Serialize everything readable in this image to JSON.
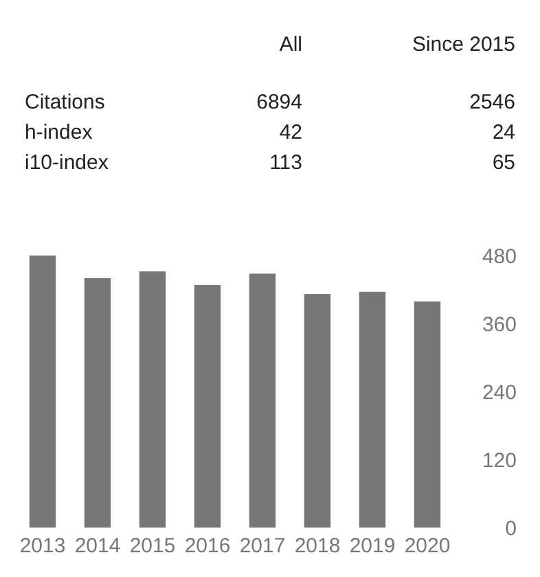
{
  "chart_data": [
    {
      "type": "other",
      "categories": [
        "All",
        "Since 2015"
      ],
      "y_categories": [
        "Citations",
        "h-index",
        "i10-index"
      ],
      "cell_labels": [
        [
          "6894",
          "2546"
        ],
        [
          "42",
          "24"
        ],
        [
          "113",
          "65"
        ]
      ]
    },
    {
      "type": "bar",
      "categories": [
        "2013",
        "2014",
        "2015",
        "2016",
        "2017",
        "2018",
        "2019",
        "2020"
      ],
      "values": [
        480,
        440,
        452,
        428,
        448,
        412,
        416,
        399
      ],
      "color": "#777777",
      "ylim": [
        0,
        480
      ],
      "yticks": [
        0,
        120,
        240,
        360,
        480
      ],
      "grid": false
    }
  ]
}
